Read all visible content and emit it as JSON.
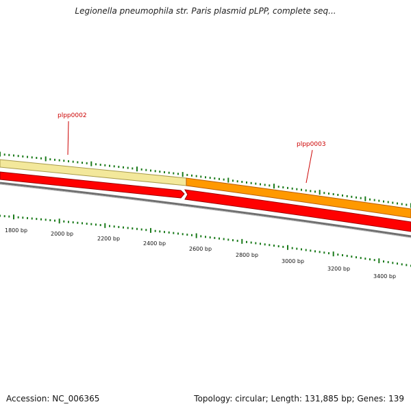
{
  "title": "Legionella pneumophila str. Paris plasmid pLPP, complete seq...",
  "footer": {
    "accession": "Accession: NC_006365",
    "summary": "Topology: circular; Length: 131,885 bp; Genes: 139"
  },
  "scale": {
    "labels": [
      "1800 bp",
      "2000 bp",
      "2200 bp",
      "2400 bp",
      "2600 bp",
      "2800 bp",
      "3000 bp",
      "3200 bp",
      "3400 bp"
    ]
  },
  "genes": [
    {
      "label": "plpp0002",
      "strand": "forward",
      "color": "#f3e89b"
    },
    {
      "label": "plpp0003",
      "strand": "forward",
      "color": "#ff9900"
    }
  ],
  "reverse_features": [
    {
      "strand": "reverse",
      "color": "#ff0000"
    },
    {
      "strand": "reverse",
      "color": "#ff0000"
    }
  ],
  "colors": {
    "tick": "#1a7a1a",
    "gene_label": "#cc0000",
    "backbone": "#888888"
  }
}
